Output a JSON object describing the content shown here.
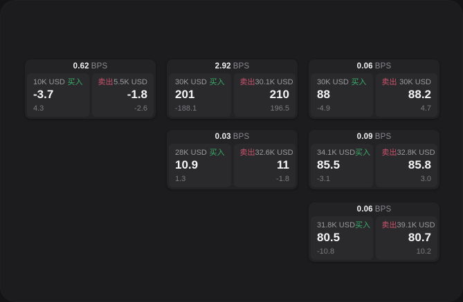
{
  "colors": {
    "buy_accent": "#3bad6c",
    "sell_accent": "#c9536d",
    "panel_background": "#1c1c1e",
    "card_background": "#232325",
    "tile_background": "#2a2a2c"
  },
  "bps_unit": "BPS",
  "cards": [
    {
      "bps": "0.62",
      "unit": "BPS",
      "buy": {
        "volume": "10K USD",
        "side_label": "买入",
        "price": "-3.7",
        "delta": "4.3"
      },
      "sell": {
        "side_label": "卖出",
        "volume": "5.5K USD",
        "price": "-1.8",
        "delta": "-2.6"
      }
    },
    {
      "bps": "2.92",
      "unit": "BPS",
      "buy": {
        "volume": "30K USD",
        "side_label": "买入",
        "price": "201",
        "delta": "-188.1"
      },
      "sell": {
        "side_label": "卖出",
        "volume": "30.1K USD",
        "price": "210",
        "delta": "196.5"
      }
    },
    {
      "bps": "0.06",
      "unit": "BPS",
      "buy": {
        "volume": "30K USD",
        "side_label": "买入",
        "price": "88",
        "delta": "-4.9"
      },
      "sell": {
        "side_label": "卖出",
        "volume": "30K USD",
        "price": "88.2",
        "delta": "4.7"
      }
    },
    {
      "bps": "0.03",
      "unit": "BPS",
      "buy": {
        "volume": "28K USD",
        "side_label": "买入",
        "price": "10.9",
        "delta": "1.3"
      },
      "sell": {
        "side_label": "卖出",
        "volume": "32.6K USD",
        "price": "11",
        "delta": "-1.8"
      }
    },
    {
      "bps": "0.09",
      "unit": "BPS",
      "buy": {
        "volume": "34.1K USD",
        "side_label": "买入",
        "price": "85.5",
        "delta": "-3.1"
      },
      "sell": {
        "side_label": "卖出",
        "volume": "32.8K USD",
        "price": "85.8",
        "delta": "3.0"
      }
    },
    {
      "bps": "0.06",
      "unit": "BPS",
      "buy": {
        "volume": "31.8K USD",
        "side_label": "买入",
        "price": "80.5",
        "delta": "-10.8"
      },
      "sell": {
        "side_label": "卖出",
        "volume": "39.1K USD",
        "price": "80.7",
        "delta": "10.2"
      }
    }
  ]
}
